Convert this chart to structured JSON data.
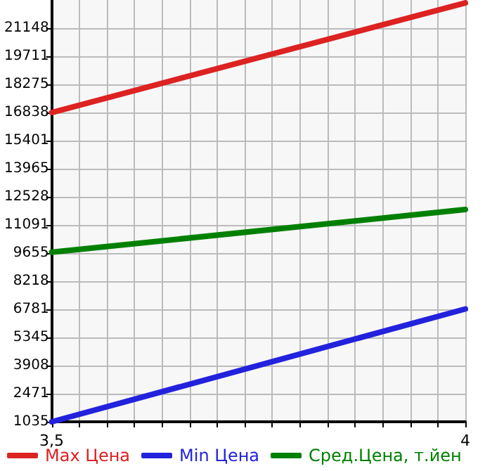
{
  "chart_data": {
    "type": "line",
    "x": [
      3.5,
      4
    ],
    "xlim": [
      3.5,
      4
    ],
    "xticks": [
      {
        "value": 3.5,
        "label": "3,5"
      },
      {
        "value": 3.5333,
        "label": null
      },
      {
        "value": 3.5667,
        "label": null
      },
      {
        "value": 3.6,
        "label": null
      },
      {
        "value": 3.6333,
        "label": null
      },
      {
        "value": 3.6667,
        "label": null
      },
      {
        "value": 3.7,
        "label": null
      },
      {
        "value": 3.7333,
        "label": null
      },
      {
        "value": 3.7667,
        "label": null
      },
      {
        "value": 3.8,
        "label": null
      },
      {
        "value": 3.8333,
        "label": null
      },
      {
        "value": 3.8667,
        "label": null
      },
      {
        "value": 3.9,
        "label": null
      },
      {
        "value": 3.9333,
        "label": null
      },
      {
        "value": 3.9667,
        "label": null
      },
      {
        "value": 4,
        "label": "4"
      }
    ],
    "ylim": [
      1035,
      22585
    ],
    "yticks": [
      1035,
      2471,
      3908,
      5345,
      6781,
      8218,
      9655,
      11091,
      12528,
      13965,
      15401,
      16838,
      18275,
      19711,
      21148
    ],
    "series": [
      {
        "name": "Max Цена",
        "color": "#dd2222",
        "values": [
          16838,
          22440
        ]
      },
      {
        "name": "Min Цена",
        "color": "#2222dd",
        "values": [
          1035,
          6800
        ]
      },
      {
        "name": "Сред.Цена, т.йен",
        "color": "#008000",
        "values": [
          9700,
          11880
        ]
      }
    ],
    "grid": true,
    "legend": "bottom",
    "marker": "none",
    "line_style": "solid"
  }
}
